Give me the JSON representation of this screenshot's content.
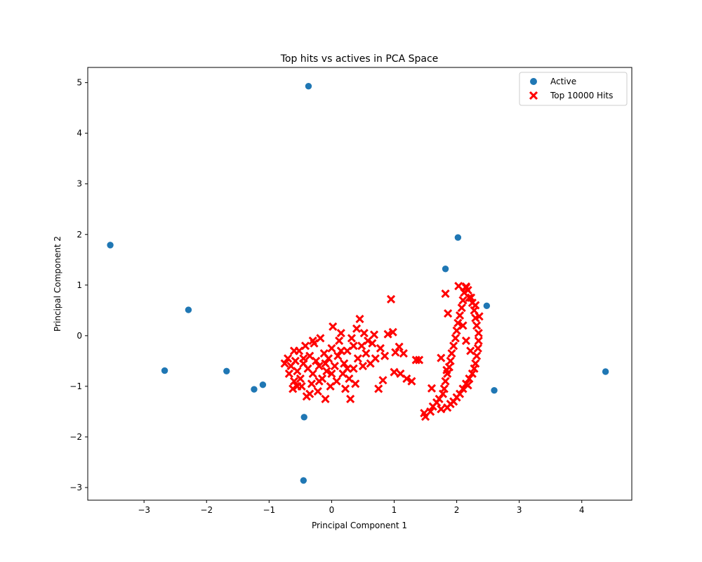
{
  "chart_data": {
    "type": "scatter",
    "title": "Top hits vs actives in PCA Space",
    "xlabel": "Principal Component 1",
    "ylabel": "Principal Component 2",
    "xlim": [
      -3.9,
      4.8
    ],
    "ylim": [
      -3.25,
      5.3
    ],
    "x_ticks": [
      -3,
      -2,
      -1,
      0,
      1,
      2,
      3,
      4
    ],
    "y_ticks": [
      -3,
      -2,
      -1,
      0,
      1,
      2,
      3,
      4,
      5
    ],
    "grid": false,
    "legend_position": "top-right",
    "series": [
      {
        "name": "Active",
        "marker": "circle",
        "color": "#1f77b4",
        "points": [
          [
            -0.37,
            4.93
          ],
          [
            -3.54,
            1.79
          ],
          [
            -2.29,
            0.51
          ],
          [
            -2.67,
            -0.69
          ],
          [
            -1.68,
            -0.7
          ],
          [
            -1.24,
            -1.06
          ],
          [
            -1.1,
            -0.97
          ],
          [
            -0.44,
            -1.61
          ],
          [
            -0.45,
            -2.86
          ],
          [
            2.02,
            1.94
          ],
          [
            1.82,
            1.32
          ],
          [
            2.48,
            0.59
          ],
          [
            2.6,
            -1.08
          ],
          [
            4.38,
            -0.71
          ]
        ]
      },
      {
        "name": "Top 10000 Hits",
        "marker": "x",
        "color": "#ff0000",
        "points": [
          [
            -0.75,
            -0.55
          ],
          [
            -0.7,
            -0.45
          ],
          [
            -0.68,
            -0.75
          ],
          [
            -0.65,
            -0.6
          ],
          [
            -0.62,
            -1.05
          ],
          [
            -0.6,
            -0.9
          ],
          [
            -0.58,
            -0.5
          ],
          [
            -0.55,
            -0.7
          ],
          [
            -0.52,
            -0.3
          ],
          [
            -0.5,
            -0.85
          ],
          [
            -0.48,
            -1.0
          ],
          [
            -0.45,
            -0.55
          ],
          [
            -0.42,
            -0.2
          ],
          [
            -0.4,
            -1.2
          ],
          [
            -0.38,
            -0.65
          ],
          [
            -0.35,
            -0.4
          ],
          [
            -0.32,
            -0.95
          ],
          [
            -0.3,
            -0.75
          ],
          [
            -0.28,
            -0.15
          ],
          [
            -0.25,
            -0.5
          ],
          [
            -0.22,
            -1.1
          ],
          [
            -0.2,
            -0.6
          ],
          [
            -0.18,
            -0.05
          ],
          [
            -0.15,
            -0.85
          ],
          [
            -0.12,
            -0.35
          ],
          [
            -0.1,
            -1.25
          ],
          [
            -0.08,
            -0.7
          ],
          [
            -0.05,
            -0.45
          ],
          [
            -0.02,
            -1.0
          ],
          [
            0.0,
            -0.25
          ],
          [
            0.02,
            0.18
          ],
          [
            0.05,
            -0.6
          ],
          [
            0.08,
            -0.9
          ],
          [
            0.1,
            -0.4
          ],
          [
            0.12,
            -0.1
          ],
          [
            0.15,
            0.05
          ],
          [
            0.18,
            -0.75
          ],
          [
            0.2,
            -0.55
          ],
          [
            0.22,
            -1.05
          ],
          [
            0.25,
            -0.3
          ],
          [
            0.28,
            -0.85
          ],
          [
            0.3,
            -1.25
          ],
          [
            0.32,
            -0.05
          ],
          [
            0.35,
            -0.65
          ],
          [
            0.38,
            -0.95
          ],
          [
            0.4,
            0.14
          ],
          [
            0.42,
            -0.45
          ],
          [
            0.45,
            0.33
          ],
          [
            0.48,
            -0.2
          ],
          [
            0.5,
            -0.6
          ],
          [
            0.52,
            0.05
          ],
          [
            0.55,
            -0.35
          ],
          [
            0.58,
            -0.1
          ],
          [
            0.62,
            -0.55
          ],
          [
            0.65,
            -0.15
          ],
          [
            0.68,
            0.02
          ],
          [
            0.7,
            -0.45
          ],
          [
            0.75,
            -1.05
          ],
          [
            0.78,
            -0.25
          ],
          [
            0.82,
            -0.88
          ],
          [
            0.85,
            -0.4
          ],
          [
            0.9,
            0.03
          ],
          [
            0.95,
            0.72
          ],
          [
            0.98,
            0.07
          ],
          [
            1.0,
            -0.72
          ],
          [
            1.02,
            -0.33
          ],
          [
            1.08,
            -0.22
          ],
          [
            1.1,
            -0.75
          ],
          [
            1.15,
            -0.35
          ],
          [
            1.2,
            -0.85
          ],
          [
            1.28,
            -0.9
          ],
          [
            1.35,
            -0.48
          ],
          [
            1.4,
            -0.48
          ],
          [
            -0.6,
            -0.3
          ],
          [
            -0.3,
            -0.1
          ],
          [
            -0.1,
            -0.55
          ],
          [
            0.0,
            -0.75
          ],
          [
            0.15,
            -0.3
          ],
          [
            -0.45,
            -0.45
          ],
          [
            -0.2,
            -0.9
          ],
          [
            0.25,
            -0.65
          ],
          [
            0.35,
            -0.2
          ],
          [
            -0.55,
            -1.0
          ],
          [
            -0.35,
            -1.15
          ],
          [
            1.48,
            -1.53
          ],
          [
            1.5,
            -1.6
          ],
          [
            1.58,
            -1.5
          ],
          [
            1.62,
            -1.4
          ],
          [
            1.68,
            -1.32
          ],
          [
            1.72,
            -1.25
          ],
          [
            1.75,
            -1.45
          ],
          [
            1.78,
            -1.15
          ],
          [
            1.8,
            -1.05
          ],
          [
            1.82,
            -0.9
          ],
          [
            1.85,
            -0.75
          ],
          [
            1.88,
            -0.62
          ],
          [
            1.9,
            -0.5
          ],
          [
            1.92,
            -0.35
          ],
          [
            1.95,
            -0.2
          ],
          [
            1.98,
            -0.05
          ],
          [
            2.0,
            0.1
          ],
          [
            2.02,
            0.25
          ],
          [
            2.05,
            0.4
          ],
          [
            2.08,
            0.55
          ],
          [
            2.1,
            0.7
          ],
          [
            2.12,
            0.85
          ],
          [
            2.15,
            0.95
          ],
          [
            2.18,
            0.9
          ],
          [
            2.2,
            0.75
          ],
          [
            2.25,
            0.65
          ],
          [
            2.28,
            0.5
          ],
          [
            2.3,
            0.35
          ],
          [
            2.32,
            0.2
          ],
          [
            2.35,
            0.05
          ],
          [
            2.35,
            -0.1
          ],
          [
            2.34,
            -0.25
          ],
          [
            2.32,
            -0.4
          ],
          [
            2.3,
            -0.55
          ],
          [
            2.28,
            -0.65
          ],
          [
            2.25,
            -0.75
          ],
          [
            2.2,
            -0.85
          ],
          [
            2.15,
            -0.95
          ],
          [
            2.1,
            -1.05
          ],
          [
            2.05,
            -1.15
          ],
          [
            2.0,
            -1.22
          ],
          [
            1.95,
            -1.3
          ],
          [
            1.9,
            -1.35
          ],
          [
            1.85,
            -1.42
          ],
          [
            1.6,
            -1.04
          ],
          [
            1.75,
            -0.44
          ],
          [
            1.82,
            0.83
          ],
          [
            1.86,
            0.44
          ],
          [
            2.03,
            0.98
          ],
          [
            2.15,
            0.97
          ],
          [
            2.23,
            0.75
          ],
          [
            2.3,
            0.6
          ],
          [
            2.36,
            0.38
          ],
          [
            1.84,
            -0.68
          ],
          [
            2.18,
            -0.98
          ],
          [
            2.22,
            -0.3
          ],
          [
            2.15,
            -0.1
          ],
          [
            2.1,
            0.2
          ]
        ]
      }
    ]
  }
}
